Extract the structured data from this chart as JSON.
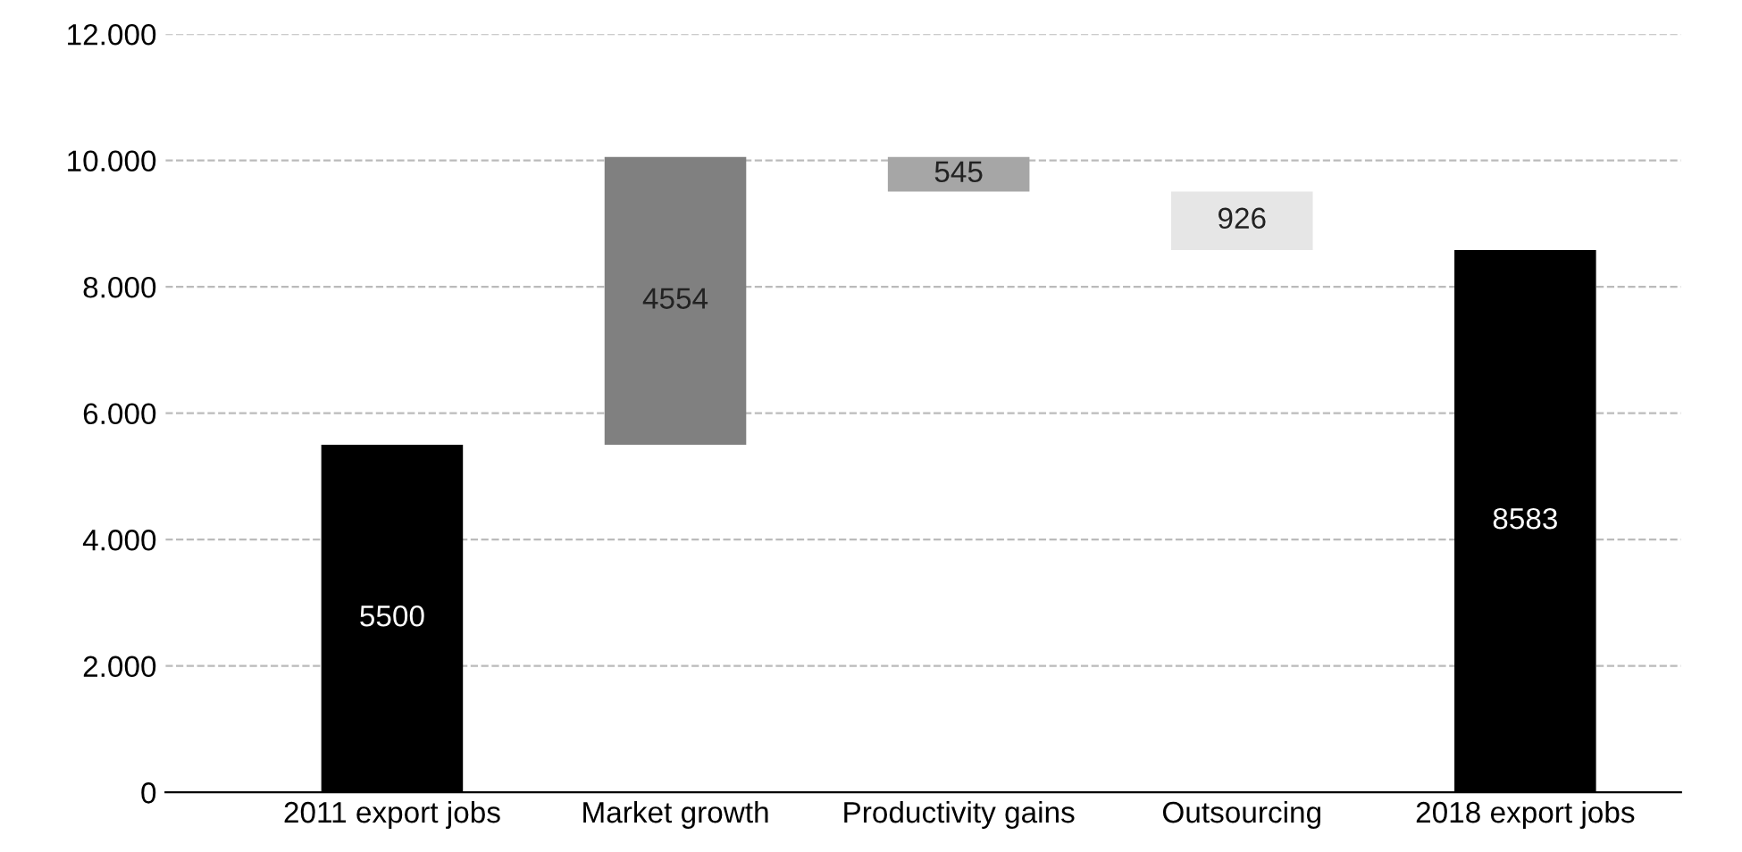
{
  "chart_data": {
    "type": "bar",
    "categories": [
      "2011 export jobs",
      "Market growth",
      "Productivity gains",
      "Outsourcing",
      "2018 export jobs"
    ],
    "values": [
      5500,
      4554,
      545,
      926,
      8583
    ],
    "base": [
      0,
      5500,
      9509,
      8583,
      0
    ],
    "colors": [
      "#000000",
      "#808080",
      "#a6a6a6",
      "#e6e6e6",
      "#000000"
    ],
    "data_labels": true,
    "ylim": [
      0,
      12000
    ],
    "yticks": [
      0,
      {
        "value": 2000,
        "label": "2.000"
      },
      {
        "value": 4000,
        "label": "4.000"
      },
      {
        "value": 6000,
        "label": "6.000"
      },
      {
        "value": 8000,
        "label": "8.000"
      },
      {
        "value": 10000,
        "label": "10.000"
      },
      {
        "value": 12000,
        "label": "12.000"
      }
    ],
    "grid": "y",
    "line_style": "dashed"
  }
}
